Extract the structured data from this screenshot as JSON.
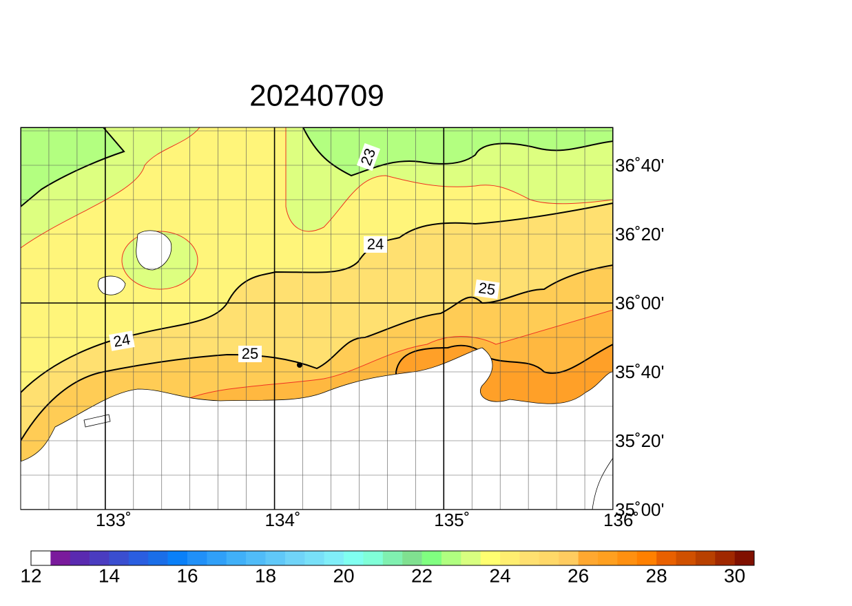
{
  "map": {
    "title": "20240709",
    "lonlim": [
      132.5,
      136
    ],
    "latlim": [
      35,
      36.85
    ],
    "lonticks": [
      {
        "value": 133,
        "label": "133˚"
      },
      {
        "value": 134,
        "label": "134˚"
      },
      {
        "value": 135,
        "label": "135˚"
      },
      {
        "value": 136,
        "label": "136˚"
      }
    ],
    "latticks": [
      {
        "value": 35,
        "label": "35˚00'"
      },
      {
        "value": 35.3333,
        "label": "35˚20'"
      },
      {
        "value": 35.6667,
        "label": "35˚40'"
      },
      {
        "value": 36,
        "label": "36˚00'"
      },
      {
        "value": 36.3333,
        "label": "36˚20'"
      },
      {
        "value": 36.6667,
        "label": "36˚40'"
      }
    ],
    "contour_labels": [
      "23",
      "24",
      "24",
      "25",
      "25"
    ],
    "colorbar": {
      "range": [
        12,
        30.5
      ],
      "colors": [
        "#ffffff",
        "#7a1a9c",
        "#5a2ab0",
        "#4a3cc0",
        "#3a4ed0",
        "#2a5ee0",
        "#1a6ee8",
        "#0a80f8",
        "#2090f8",
        "#30a0f8",
        "#40b0f8",
        "#50bcf8",
        "#60c8f8",
        "#70d4f8",
        "#78e0f8",
        "#80eef8",
        "#80fff0",
        "#80ffd8",
        "#80f0b0",
        "#80e090",
        "#80ff80",
        "#b0ff80",
        "#d8ff80",
        "#ffff70",
        "#ffee70",
        "#ffe070",
        "#ffd868",
        "#ffcc60",
        "#ffa830",
        "#ffa020",
        "#ff9010",
        "#ff8000",
        "#e86000",
        "#d05000",
        "#b84000",
        "#a02800",
        "#801000"
      ],
      "ticks": [
        12,
        14,
        16,
        18,
        20,
        22,
        24,
        26,
        28,
        30
      ]
    }
  }
}
